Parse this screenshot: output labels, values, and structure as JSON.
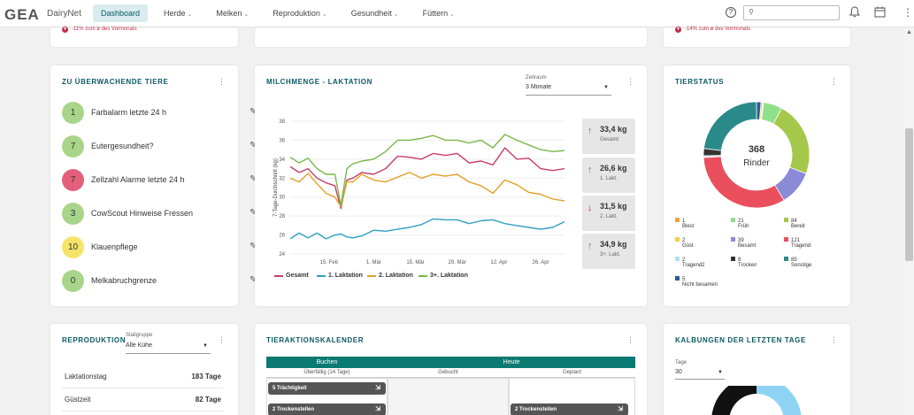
{
  "app": {
    "logo": "GEA",
    "name": "DairyNet"
  },
  "nav": [
    {
      "label": "Dashboard",
      "active": true,
      "has_menu": false
    },
    {
      "label": "Herde",
      "active": false,
      "has_menu": true
    },
    {
      "label": "Melken",
      "active": false,
      "has_menu": true
    },
    {
      "label": "Reproduktion",
      "active": false,
      "has_menu": true
    },
    {
      "label": "Gesundheit",
      "active": false,
      "has_menu": true
    },
    {
      "label": "Füttern",
      "active": false,
      "has_menu": true
    }
  ],
  "header": {
    "search_placeholder": "",
    "help_icon": "question-circle-icon",
    "bell_icon": "bell-icon",
    "calendar_icon": "calendar-icon"
  },
  "top_strip": {
    "left_note": "-11% zum ø des Vormonats",
    "right_note": "-14% zum ø des Vormonats"
  },
  "monitor": {
    "title": "ZU ÜBERWACHENDE TIERE",
    "items": [
      {
        "count": "1",
        "label": "Farbalarm letzte 24 h",
        "color": "#a8d58a"
      },
      {
        "count": "7",
        "label": "Eutergesundheit?",
        "color": "#a8d58a"
      },
      {
        "count": "7",
        "label": "Zellzahl Alarme letzte 24 h",
        "color": "#e4607a"
      },
      {
        "count": "3",
        "label": "CowScout Hinweise Fressen",
        "color": "#a8d58a"
      },
      {
        "count": "10",
        "label": "Klauenpflege",
        "color": "#f6e46a"
      },
      {
        "count": "0",
        "label": "Melkabruchgrenze",
        "color": "#a8d58a"
      }
    ]
  },
  "milk": {
    "title": "MILCHMENGE - LAKTATION",
    "period_label": "Zeitraum",
    "period_value": "3 Monate",
    "stats": [
      {
        "value": "33,4 kg",
        "label": "Gesamt",
        "trend": "up",
        "color": "#3aa03a"
      },
      {
        "value": "26,6 kg",
        "label": "1. Lakt.",
        "trend": "up",
        "color": "#3aa03a"
      },
      {
        "value": "31,5 kg",
        "label": "2. Lakt.",
        "trend": "down",
        "color": "#c0304a"
      },
      {
        "value": "34,9 kg",
        "label": "3+. Lakt.",
        "trend": "up",
        "color": "#3aa03a"
      }
    ]
  },
  "chart_data": {
    "type": "line",
    "title": "MILCHMENGE - LAKTATION",
    "xlabel": "",
    "ylabel": "7-Tage-Durchschnitt (kg)",
    "ylim": [
      24,
      38
    ],
    "yticks": [
      24,
      26,
      28,
      30,
      32,
      34,
      36,
      38
    ],
    "xtick_labels": [
      "15. Feb",
      "1. Mär",
      "15. Mär",
      "29. Mär",
      "12. Apr",
      "26. Apr"
    ],
    "x": [
      "2024-02-02",
      "2024-02-05",
      "2024-02-08",
      "2024-02-11",
      "2024-02-14",
      "2024-02-17",
      "2024-02-19",
      "2024-02-21",
      "2024-02-23",
      "2024-02-26",
      "2024-03-01",
      "2024-03-05",
      "2024-03-09",
      "2024-03-13",
      "2024-03-17",
      "2024-03-21",
      "2024-03-25",
      "2024-03-29",
      "2024-04-02",
      "2024-04-06",
      "2024-04-10",
      "2024-04-14",
      "2024-04-18",
      "2024-04-22",
      "2024-04-26",
      "2024-04-30",
      "2024-05-04"
    ],
    "series": [
      {
        "name": "Gesamt",
        "color": "#c83c6a",
        "values": [
          33.2,
          32.6,
          33.0,
          32.0,
          31.5,
          31.2,
          28.8,
          31.8,
          32.0,
          32.6,
          32.4,
          33.0,
          34.3,
          34.2,
          34.0,
          34.6,
          34.4,
          34.6,
          33.6,
          33.8,
          33.4,
          35.2,
          34.0,
          34.1,
          33.0,
          32.8,
          33.0
        ]
      },
      {
        "name": "1. Laktation",
        "color": "#2f9fc0",
        "values": [
          25.6,
          26.2,
          25.7,
          26.2,
          25.6,
          26.0,
          26.1,
          25.8,
          25.7,
          25.9,
          26.5,
          26.4,
          26.6,
          26.8,
          27.1,
          27.7,
          27.6,
          27.6,
          27.2,
          27.5,
          27.6,
          27.2,
          27.0,
          26.8,
          26.6,
          26.8,
          27.4
        ]
      },
      {
        "name": "2. Laktation",
        "color": "#e2a12a",
        "values": [
          32.0,
          31.6,
          32.5,
          31.4,
          30.4,
          30.0,
          29.0,
          31.6,
          31.6,
          32.4,
          31.8,
          31.6,
          32.1,
          32.6,
          32.0,
          32.4,
          32.2,
          32.4,
          31.6,
          31.2,
          30.4,
          31.8,
          31.3,
          30.5,
          30.3,
          29.8,
          29.6
        ]
      },
      {
        "name": "3+. Laktation",
        "color": "#7ab848",
        "values": [
          34.2,
          33.6,
          34.1,
          33.0,
          32.4,
          32.4,
          29.1,
          33.0,
          33.5,
          33.8,
          34.0,
          34.8,
          36.0,
          36.0,
          36.2,
          36.5,
          36.0,
          36.0,
          35.7,
          36.0,
          35.2,
          36.6,
          36.0,
          35.5,
          35.0,
          34.8,
          34.9
        ]
      }
    ],
    "legend_position": "bottom"
  },
  "tierstatus": {
    "title": "TIERSTATUS",
    "total": "368",
    "total_label": "Rinder",
    "donut": [
      {
        "value": 1,
        "color": "#f0a340"
      },
      {
        "value": 21,
        "color": "#8fe08a"
      },
      {
        "value": 84,
        "color": "#a5c84a"
      },
      {
        "value": 39,
        "color": "#8a8ad8"
      },
      {
        "value": 121,
        "color": "#e94f5c"
      },
      {
        "value": 2,
        "color": "#c9d8e8"
      },
      {
        "value": 8,
        "color": "#333333"
      },
      {
        "value": 85,
        "color": "#2a8a8a"
      },
      {
        "value": 5,
        "color": "#2a5a9a"
      },
      {
        "value": 2,
        "color": "#f5d040"
      }
    ],
    "legend": [
      {
        "count": "1",
        "label": "Blest",
        "color": "#f0a340"
      },
      {
        "count": "21",
        "label": "Früh",
        "color": "#8fe08a"
      },
      {
        "count": "84",
        "label": "Bereit",
        "color": "#a5c84a"
      },
      {
        "count": "2",
        "label": "Güst",
        "color": "#f5d040"
      },
      {
        "count": "39",
        "label": "Besamt",
        "color": "#8a8ad8"
      },
      {
        "count": "121",
        "label": "Tragend",
        "color": "#e94f5c"
      },
      {
        "count": "2",
        "label": "Tragend2",
        "color": "#a8e0f0"
      },
      {
        "count": "8",
        "label": "Trocken",
        "color": "#333333"
      },
      {
        "count": "85",
        "label": "Sonstige",
        "color": "#2a8a8a"
      },
      {
        "count": "5",
        "label": "Nicht besamen",
        "color": "#2a5a9a"
      }
    ]
  },
  "repro": {
    "title": "REPRODUKTION",
    "group_label": "Stallgruppe",
    "group_value": "Alle Kühe",
    "rows": [
      {
        "key": "Laktationstag",
        "value": "183 Tage"
      },
      {
        "key": "Güstzeit",
        "value": "82 Tage"
      }
    ]
  },
  "calendar": {
    "title": "TIERAKTIONSKALENDER",
    "col_left": "Buchen",
    "col_right": "Heute",
    "sub_overdue": "Überfällig (14 Tage)",
    "sub_booked": "Gebucht",
    "sub_planned": "Geplant",
    "chips": [
      {
        "label": "5 Trächtigkeit"
      },
      {
        "label": "2 Trockenstellen"
      },
      {
        "label": "2 Trockenstellen"
      }
    ]
  },
  "calvings": {
    "title": "KALBUNGEN DER LETZTEN TAGE",
    "days_label": "Tage",
    "days_value": "30"
  }
}
